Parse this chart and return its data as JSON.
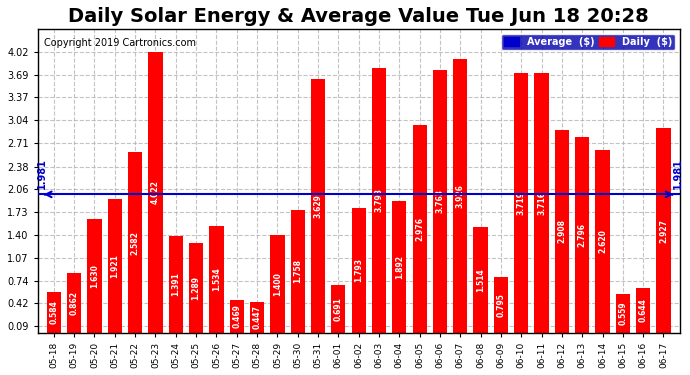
{
  "title": "Daily Solar Energy & Average Value Tue Jun 18 20:28",
  "copyright": "Copyright 2019 Cartronics.com",
  "categories": [
    "05-18",
    "05-19",
    "05-20",
    "05-21",
    "05-22",
    "05-23",
    "05-24",
    "05-25",
    "05-26",
    "05-27",
    "05-28",
    "05-29",
    "05-30",
    "05-31",
    "06-01",
    "06-02",
    "06-03",
    "06-04",
    "06-05",
    "06-06",
    "06-07",
    "06-08",
    "06-09",
    "06-10",
    "06-11",
    "06-12",
    "06-13",
    "06-14",
    "06-15",
    "06-16",
    "06-17"
  ],
  "values": [
    0.584,
    0.862,
    1.63,
    1.921,
    2.582,
    4.022,
    1.391,
    1.289,
    1.534,
    0.469,
    0.447,
    1.4,
    1.758,
    3.629,
    0.691,
    1.793,
    3.793,
    1.892,
    2.976,
    3.763,
    3.926,
    1.514,
    0.795,
    3.719,
    3.716,
    2.908,
    2.796,
    2.62,
    0.559,
    0.644,
    2.927
  ],
  "average": 1.981,
  "bar_color": "#FF0000",
  "average_color": "#0000CC",
  "ylim": [
    0,
    4.35
  ],
  "yticks": [
    0.09,
    0.42,
    0.74,
    1.07,
    1.4,
    1.73,
    2.06,
    2.38,
    2.71,
    3.04,
    3.37,
    3.69,
    4.02
  ],
  "background_color": "#ffffff",
  "grid_color": "#aaaaaa",
  "title_fontsize": 14,
  "bar_text_color": "#ffffff",
  "legend_avg_color": "#0000CC",
  "legend_daily_color": "#FF0000"
}
